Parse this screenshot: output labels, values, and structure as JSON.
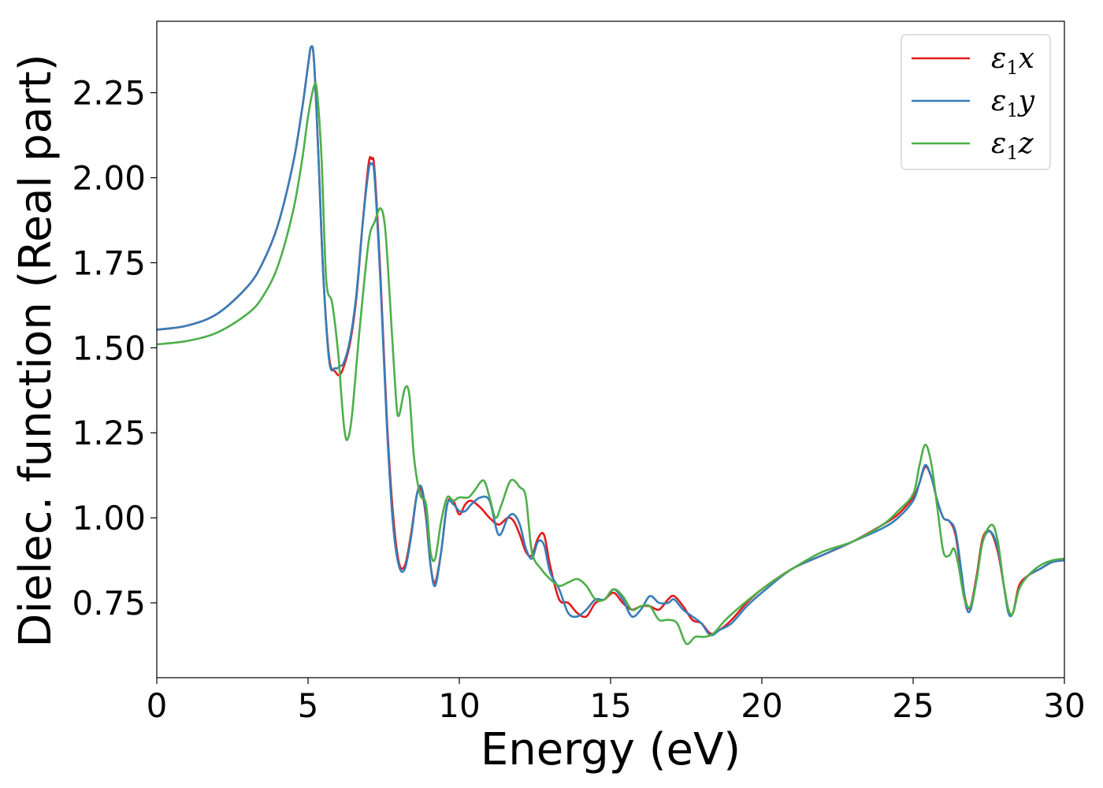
{
  "chart_data": {
    "type": "line",
    "xlabel": "Energy (eV)",
    "ylabel": "Dielec. function (Real part)",
    "xlim": [
      0,
      30
    ],
    "ylim": [
      0.53,
      2.46
    ],
    "xticks": [
      0,
      5,
      10,
      15,
      20,
      25,
      30
    ],
    "xtick_labels": [
      "0",
      "5",
      "10",
      "15",
      "20",
      "25",
      "30"
    ],
    "yticks": [
      0.75,
      1.0,
      1.25,
      1.5,
      1.75,
      2.0,
      2.25
    ],
    "ytick_labels": [
      "0.75",
      "1.00",
      "1.25",
      "1.50",
      "1.75",
      "2.00",
      "2.25"
    ],
    "grid": false,
    "legend_position": "top-right",
    "series": [
      {
        "name": "ε₁x",
        "legend_main": "ε",
        "legend_sub": "1",
        "legend_suffix": "x",
        "color": "#e41a1c",
        "x": [
          0,
          1,
          2,
          3,
          3.5,
          4,
          4.5,
          4.8,
          5.0,
          5.1,
          5.2,
          5.35,
          5.5,
          5.7,
          5.9,
          6.05,
          6.2,
          6.4,
          6.6,
          6.8,
          7.0,
          7.1,
          7.2,
          7.4,
          7.6,
          7.8,
          8.0,
          8.2,
          8.4,
          8.6,
          8.75,
          8.9,
          9.05,
          9.2,
          9.4,
          9.6,
          9.8,
          10.0,
          10.2,
          10.4,
          10.7,
          11.0,
          11.3,
          11.6,
          11.8,
          12.0,
          12.2,
          12.4,
          12.6,
          12.8,
          13.0,
          13.3,
          13.6,
          13.9,
          14.2,
          14.5,
          14.8,
          15.1,
          15.4,
          15.7,
          16.0,
          16.3,
          16.6,
          16.9,
          17.1,
          17.4,
          17.7,
          18.0,
          18.3,
          18.6,
          19.0,
          19.5,
          20.0,
          21.0,
          22.0,
          23.0,
          24.0,
          24.5,
          25.0,
          25.2,
          25.4,
          25.6,
          25.8,
          26.0,
          26.2,
          26.4,
          26.6,
          26.75,
          26.9,
          27.1,
          27.3,
          27.55,
          27.8,
          28.0,
          28.15,
          28.3,
          28.5,
          28.8,
          29.2,
          29.6,
          30.0
        ],
        "y": [
          1.553,
          1.565,
          1.6,
          1.68,
          1.75,
          1.86,
          2.04,
          2.2,
          2.33,
          2.385,
          2.34,
          2.05,
          1.72,
          1.47,
          1.43,
          1.42,
          1.45,
          1.52,
          1.65,
          1.86,
          2.04,
          2.055,
          2.02,
          1.7,
          1.3,
          1.02,
          0.87,
          0.86,
          0.95,
          1.07,
          1.08,
          1.0,
          0.86,
          0.81,
          0.9,
          1.04,
          1.05,
          1.01,
          1.04,
          1.05,
          1.03,
          1.0,
          0.98,
          1.0,
          0.99,
          0.95,
          0.9,
          0.89,
          0.94,
          0.95,
          0.86,
          0.76,
          0.75,
          0.72,
          0.71,
          0.75,
          0.76,
          0.78,
          0.75,
          0.73,
          0.74,
          0.74,
          0.73,
          0.76,
          0.77,
          0.74,
          0.7,
          0.69,
          0.66,
          0.67,
          0.7,
          0.75,
          0.79,
          0.85,
          0.89,
          0.93,
          0.98,
          1.01,
          1.06,
          1.1,
          1.15,
          1.12,
          1.05,
          1.0,
          0.99,
          0.95,
          0.83,
          0.75,
          0.74,
          0.83,
          0.94,
          0.96,
          0.9,
          0.8,
          0.73,
          0.72,
          0.8,
          0.83,
          0.85,
          0.87,
          0.875
        ]
      },
      {
        "name": "ε₁y",
        "legend_main": "ε",
        "legend_sub": "1",
        "legend_suffix": "y",
        "color": "#377eb8",
        "x": [
          0,
          1,
          2,
          3,
          3.5,
          4,
          4.5,
          4.8,
          5.0,
          5.1,
          5.2,
          5.35,
          5.5,
          5.7,
          5.9,
          6.05,
          6.2,
          6.4,
          6.6,
          6.8,
          7.0,
          7.1,
          7.2,
          7.4,
          7.6,
          7.8,
          8.0,
          8.2,
          8.4,
          8.6,
          8.75,
          8.9,
          9.05,
          9.2,
          9.4,
          9.6,
          9.8,
          10.0,
          10.2,
          10.4,
          10.7,
          11.0,
          11.3,
          11.6,
          11.8,
          12.0,
          12.2,
          12.4,
          12.6,
          12.8,
          13.0,
          13.3,
          13.6,
          13.9,
          14.2,
          14.5,
          14.8,
          15.1,
          15.4,
          15.7,
          16.0,
          16.3,
          16.6,
          16.9,
          17.1,
          17.4,
          17.7,
          18.0,
          18.3,
          18.6,
          19.0,
          19.5,
          20.0,
          21.0,
          22.0,
          23.0,
          24.0,
          24.5,
          25.0,
          25.2,
          25.4,
          25.6,
          25.8,
          26.0,
          26.2,
          26.4,
          26.6,
          26.75,
          26.9,
          27.1,
          27.3,
          27.55,
          27.8,
          28.0,
          28.15,
          28.3,
          28.5,
          28.8,
          29.2,
          29.6,
          30.0
        ],
        "y": [
          1.553,
          1.565,
          1.6,
          1.68,
          1.75,
          1.86,
          2.04,
          2.2,
          2.33,
          2.385,
          2.34,
          2.05,
          1.72,
          1.46,
          1.44,
          1.445,
          1.46,
          1.53,
          1.66,
          1.86,
          2.02,
          2.04,
          2.0,
          1.68,
          1.28,
          0.99,
          0.86,
          0.85,
          0.94,
          1.07,
          1.09,
          1.01,
          0.86,
          0.8,
          0.9,
          1.04,
          1.04,
          1.02,
          1.02,
          1.04,
          1.06,
          1.05,
          0.95,
          1.0,
          1.01,
          0.98,
          0.91,
          0.88,
          0.93,
          0.92,
          0.84,
          0.79,
          0.72,
          0.71,
          0.73,
          0.76,
          0.76,
          0.79,
          0.76,
          0.71,
          0.73,
          0.77,
          0.75,
          0.75,
          0.76,
          0.73,
          0.71,
          0.69,
          0.655,
          0.67,
          0.69,
          0.74,
          0.78,
          0.85,
          0.89,
          0.93,
          0.97,
          1.0,
          1.05,
          1.1,
          1.155,
          1.12,
          1.05,
          1.0,
          0.99,
          0.96,
          0.84,
          0.74,
          0.73,
          0.82,
          0.93,
          0.96,
          0.91,
          0.8,
          0.72,
          0.72,
          0.79,
          0.83,
          0.85,
          0.87,
          0.875
        ]
      },
      {
        "name": "ε₁z",
        "legend_main": "ε",
        "legend_sub": "1",
        "legend_suffix": "z",
        "color": "#4daf4a",
        "x": [
          0,
          1,
          2,
          3,
          3.5,
          4,
          4.5,
          4.8,
          5.0,
          5.2,
          5.3,
          5.45,
          5.6,
          5.8,
          6.0,
          6.1,
          6.2,
          6.3,
          6.45,
          6.7,
          7.0,
          7.2,
          7.4,
          7.55,
          7.7,
          7.9,
          8.0,
          8.2,
          8.35,
          8.5,
          8.7,
          8.9,
          9.05,
          9.2,
          9.4,
          9.6,
          9.8,
          10.0,
          10.3,
          10.5,
          10.8,
          11.0,
          11.2,
          11.4,
          11.7,
          12.0,
          12.2,
          12.4,
          12.7,
          13.0,
          13.3,
          13.6,
          13.9,
          14.2,
          14.5,
          14.8,
          15.1,
          15.4,
          15.7,
          16.0,
          16.3,
          16.6,
          16.9,
          17.2,
          17.5,
          17.8,
          18.1,
          18.4,
          18.8,
          19.3,
          20.0,
          21.0,
          22.0,
          23.0,
          24.0,
          24.5,
          25.0,
          25.2,
          25.4,
          25.6,
          25.8,
          26.0,
          26.2,
          26.35,
          26.5,
          26.7,
          26.9,
          27.1,
          27.3,
          27.6,
          27.8,
          28.0,
          28.15,
          28.3,
          28.5,
          28.8,
          29.2,
          29.6,
          30.0
        ],
        "y": [
          1.51,
          1.52,
          1.545,
          1.6,
          1.65,
          1.74,
          1.9,
          2.05,
          2.18,
          2.27,
          2.25,
          2.05,
          1.7,
          1.63,
          1.48,
          1.36,
          1.26,
          1.23,
          1.3,
          1.55,
          1.81,
          1.87,
          1.91,
          1.85,
          1.65,
          1.36,
          1.3,
          1.38,
          1.36,
          1.18,
          1.07,
          1.04,
          0.9,
          0.88,
          0.99,
          1.06,
          1.05,
          1.06,
          1.06,
          1.08,
          1.11,
          1.06,
          1.0,
          1.04,
          1.11,
          1.09,
          1.06,
          0.9,
          0.85,
          0.82,
          0.8,
          0.81,
          0.82,
          0.8,
          0.76,
          0.76,
          0.79,
          0.77,
          0.73,
          0.74,
          0.74,
          0.7,
          0.7,
          0.69,
          0.63,
          0.65,
          0.65,
          0.66,
          0.7,
          0.74,
          0.79,
          0.85,
          0.9,
          0.93,
          0.98,
          1.02,
          1.07,
          1.15,
          1.215,
          1.16,
          1.03,
          0.9,
          0.89,
          0.91,
          0.86,
          0.76,
          0.74,
          0.82,
          0.93,
          0.98,
          0.93,
          0.8,
          0.73,
          0.72,
          0.79,
          0.83,
          0.86,
          0.875,
          0.88
        ]
      }
    ]
  }
}
